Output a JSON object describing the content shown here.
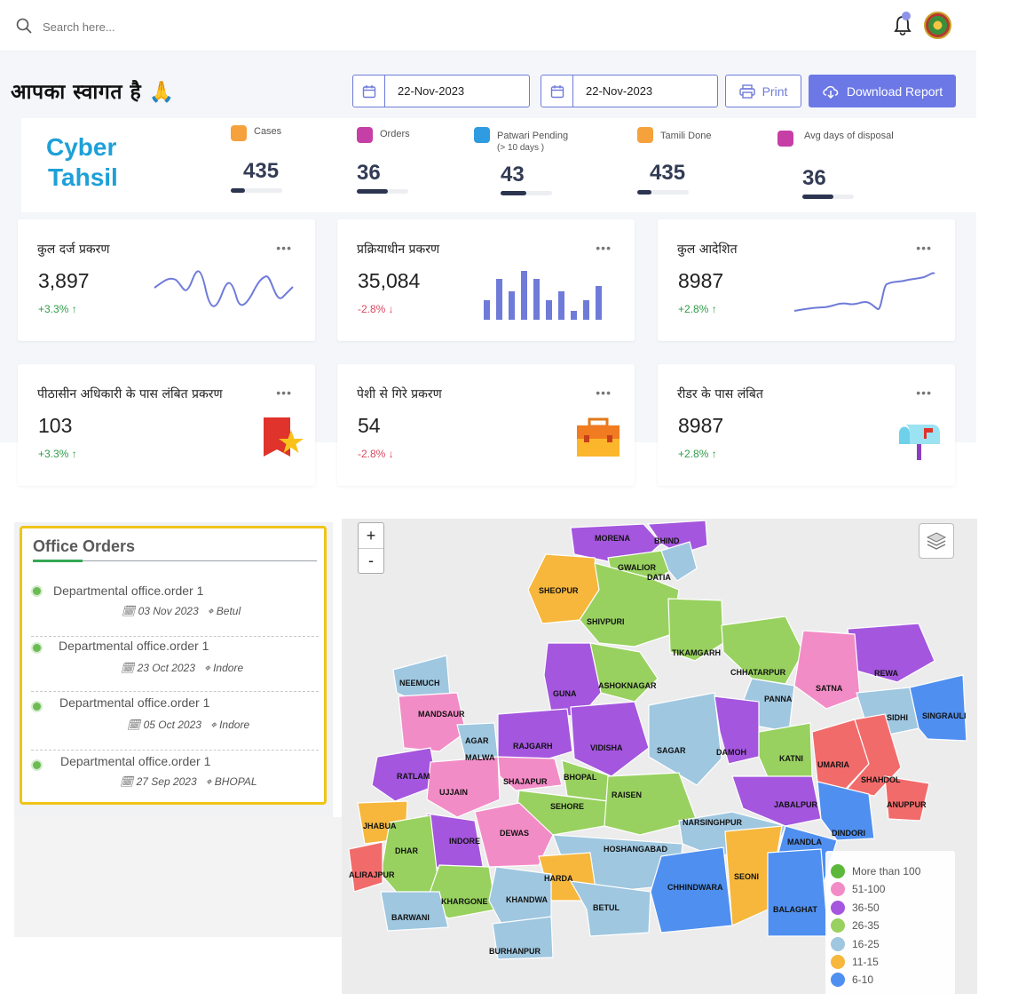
{
  "topbar": {
    "search_placeholder": "Search here..."
  },
  "header": {
    "welcome": "आपका स्वागत है 🙏",
    "date_from": "22-Nov-2023",
    "date_to": "22-Nov-2023",
    "print_label": "Print",
    "download_label": "Download Report"
  },
  "stats": {
    "brand_line1": "Cyber",
    "brand_line2": "Tahsil",
    "items": [
      {
        "label": "Cases",
        "value": "435",
        "color": "#f5a23d"
      },
      {
        "label": "Orders",
        "value": "36",
        "color": "#c63fa6"
      },
      {
        "label": "Patwari Pending",
        "sublabel": "(> 10 days )",
        "value": "43",
        "color": "#2f9be0"
      },
      {
        "label": "Tamili Done",
        "value": "435",
        "color": "#f5a23d"
      },
      {
        "label": "Avg days of disposal",
        "value": "36",
        "color": "#c63fa6"
      }
    ]
  },
  "cards": [
    {
      "title": "कुल दर्ज प्रकरण",
      "value": "3,897",
      "change": "+3.3% ↑",
      "trend": "up"
    },
    {
      "title": "प्रक्रियाधीन  प्रकरण",
      "value": "35,084",
      "change": "-2.8% ↓",
      "trend": "down"
    },
    {
      "title": "कुल आदेशित",
      "value": "8987",
      "change": "+2.8% ↑",
      "trend": "up"
    },
    {
      "title": "पीठासीन अधिकारी के पास लंबित प्रकरण",
      "value": "103",
      "change": "+3.3% ↑",
      "trend": "up"
    },
    {
      "title": "पेशी से गिरे प्रकरण",
      "value": "54",
      "change": "-2.8% ↓",
      "trend": "down"
    },
    {
      "title": "रीडर के पास लंबित",
      "value": "8987",
      "change": "+2.8% ↑",
      "trend": "up"
    }
  ],
  "office_orders": {
    "title": "Office Orders",
    "items": [
      {
        "text": "Departmental office.order 1",
        "date": "03 Nov 2023",
        "place": "Betul"
      },
      {
        "text": "Departmental office.order 1",
        "date": "23 Oct 2023",
        "place": "Indore"
      },
      {
        "text": "Departmental office.order 1",
        "date": "05 Oct 2023",
        "place": "Indore"
      },
      {
        "text": "Departmental office.order 1",
        "date": "27 Sep 2023",
        "place": "BHOPAL"
      }
    ]
  },
  "map": {
    "zoom_in": "+",
    "zoom_out": "-",
    "districts": [
      "MORENA",
      "BHIND",
      "GWALIOR",
      "DATIA",
      "SHEOPUR",
      "SHIVPURI",
      "TIKAMGARH",
      "CHHATARPUR",
      "REWA",
      "NEEMUCH",
      "ASHOKNAGAR",
      "GUNA",
      "SATNA",
      "PANNA",
      "SIDHI",
      "SINGRAULI",
      "MANDSAUR",
      "AGAR",
      "MALWA",
      "RAJGARH",
      "VIDISHA",
      "SAGAR",
      "DAMOH",
      "KATNI",
      "UMARIA",
      "SHAHDOL",
      "ANUPPUR",
      "RATLAM",
      "SHAJAPUR",
      "BHOPAL",
      "UJJAIN",
      "SEHORE",
      "RAISEN",
      "JABALPUR",
      "DINDORI",
      "JHABUA",
      "INDORE",
      "DEWAS",
      "NARSINGHPUR",
      "MANDLA",
      "DHAR",
      "HOSHANGABAD",
      "ALIRAJPUR",
      "HARDA",
      "CHHINDWARA",
      "SEONI",
      "BALAGHAT",
      "KHARGONE",
      "KHANDWA",
      "BETUL",
      "BARWANI",
      "BURHANPUR"
    ],
    "legend": [
      {
        "label": "More than 100",
        "color": "#5cb83a"
      },
      {
        "label": "51-100",
        "color": "#f28cc6"
      },
      {
        "label": "36-50",
        "color": "#a456de"
      },
      {
        "label": "26-35",
        "color": "#98d15f"
      },
      {
        "label": "16-25",
        "color": "#9fc7e0"
      },
      {
        "label": "11-15",
        "color": "#f6b73c"
      },
      {
        "label": "6-10",
        "color": "#4f8ff0"
      }
    ]
  }
}
